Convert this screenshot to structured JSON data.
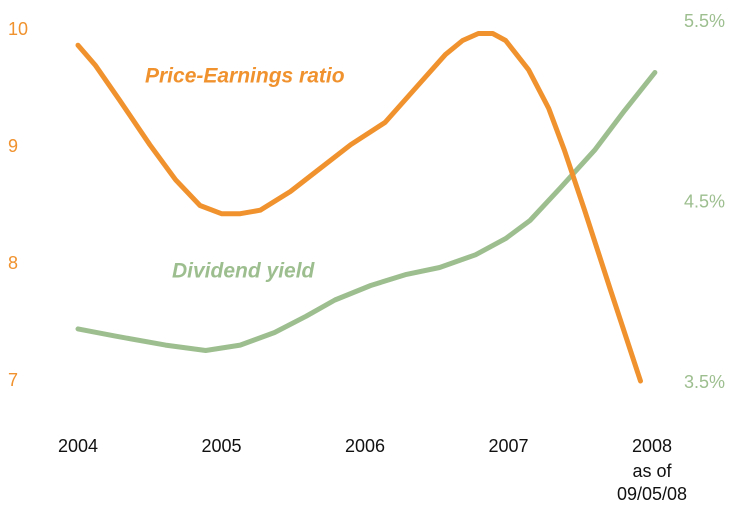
{
  "chart_data": {
    "type": "line",
    "xlim": [
      2004,
      2008
    ],
    "xticks": [
      2004,
      2005,
      2006,
      2007,
      2008
    ],
    "x_note": [
      "as of",
      "09/05/08"
    ],
    "ylim": [
      7,
      10
    ],
    "yticks": [
      7,
      8,
      9,
      10
    ],
    "y2lim": [
      3.5,
      5.5
    ],
    "y2ticks": [
      {
        "value": 3.5,
        "label": "3.5%"
      },
      {
        "value": 4.5,
        "label": "4.5%"
      },
      {
        "value": 5.5,
        "label": "5.5%"
      }
    ],
    "series": [
      {
        "name": "Price-Earnings ratio",
        "color": "#f0922e",
        "x": [
          2004.0,
          2004.12,
          2004.29,
          2004.5,
          2004.68,
          2004.85,
          2005.0,
          2005.13,
          2005.27,
          2005.48,
          2005.69,
          2005.9,
          2006.14,
          2006.35,
          2006.56,
          2006.68,
          2006.79,
          2006.89,
          2006.98,
          2007.14,
          2007.28,
          2007.39,
          2007.53,
          2007.71,
          2007.92
        ],
        "values": [
          9.87,
          9.7,
          9.4,
          9.02,
          8.72,
          8.5,
          8.43,
          8.43,
          8.46,
          8.62,
          8.82,
          9.02,
          9.21,
          9.5,
          9.79,
          9.91,
          9.97,
          9.97,
          9.91,
          9.66,
          9.33,
          8.97,
          8.46,
          7.78,
          7.0
        ]
      },
      {
        "name": "Dividend yield",
        "color": "#9dbf8f",
        "axis": "y2",
        "x": [
          2004.0,
          2004.26,
          2004.61,
          2004.89,
          2005.13,
          2005.37,
          2005.59,
          2005.79,
          2006.04,
          2006.28,
          2006.52,
          2006.77,
          2006.98,
          2007.15,
          2007.36,
          2007.6,
          2007.81,
          2008.02
        ],
        "values": [
          3.8,
          3.76,
          3.71,
          3.68,
          3.71,
          3.78,
          3.87,
          3.96,
          4.04,
          4.1,
          4.14,
          4.21,
          4.3,
          4.4,
          4.58,
          4.79,
          5.01,
          5.22
        ]
      }
    ]
  }
}
